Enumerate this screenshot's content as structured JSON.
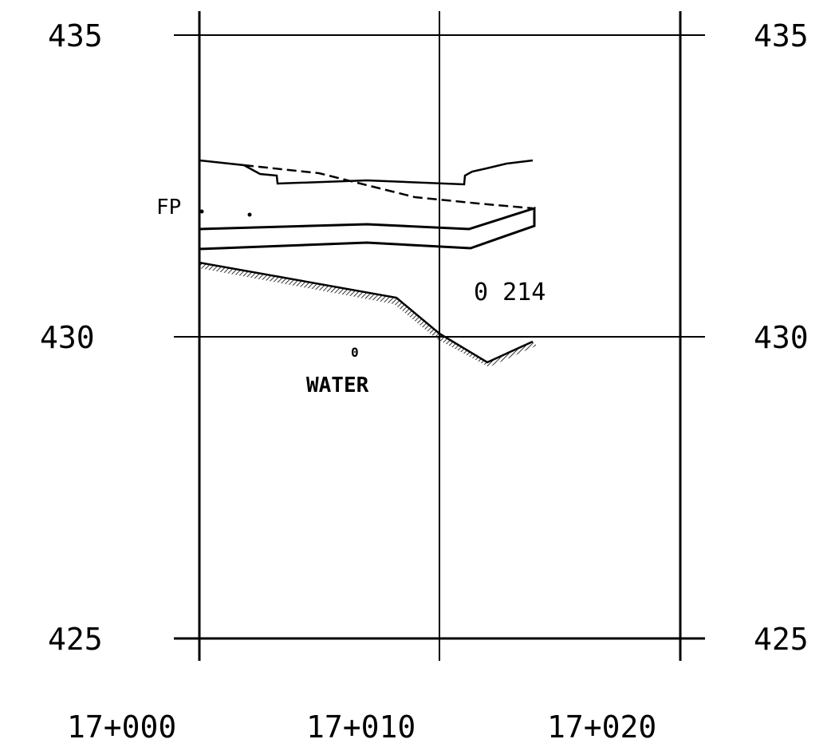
{
  "chart_data": {
    "type": "line",
    "y_ticks": [
      "435",
      "430",
      "425"
    ],
    "x_ticks": [
      "17+000",
      "17+010",
      "17+020"
    ],
    "x_range": [
      0,
      20
    ],
    "y_range": [
      425,
      435
    ],
    "grid": true,
    "annotations": {
      "fp_label": "FP",
      "section_label": "0 214",
      "water_marker": "0",
      "water_label": "WATER"
    },
    "series": [
      {
        "points": [
          [
            0,
            432.3
          ],
          [
            1.8,
            432.1
          ],
          [
            2.6,
            431.8
          ],
          [
            3.3,
            431.8
          ],
          [
            3.4,
            431.7
          ],
          [
            7,
            431.8
          ],
          [
            11,
            431.8
          ],
          [
            11.1,
            431.9
          ],
          [
            11.2,
            431.7
          ],
          [
            12.5,
            432
          ],
          [
            13.8,
            432.2
          ]
        ]
      },
      {
        "points": [
          [
            1.8,
            432.1
          ],
          [
            5,
            431.8
          ],
          [
            8,
            431.5
          ],
          [
            11,
            431.3
          ],
          [
            13.8,
            431.1
          ]
        ]
      },
      {
        "points": [
          [
            0,
            431.0
          ],
          [
            7,
            431.1
          ],
          [
            11.3,
            431.0
          ],
          [
            13.8,
            431.1
          ],
          [
            13.8,
            430.7
          ],
          [
            13.8,
            430.6
          ]
        ]
      },
      {
        "points": [
          [
            0,
            430.4
          ],
          [
            7,
            430.5
          ],
          [
            11.3,
            430.4
          ],
          [
            13.8,
            430.6
          ]
        ]
      },
      {
        "points": [
          [
            0,
            430.7
          ],
          [
            8.1,
            430.0
          ],
          [
            10,
            429.9
          ],
          [
            11.9,
            429.6
          ],
          [
            13.8,
            429.9
          ]
        ]
      }
    ]
  }
}
